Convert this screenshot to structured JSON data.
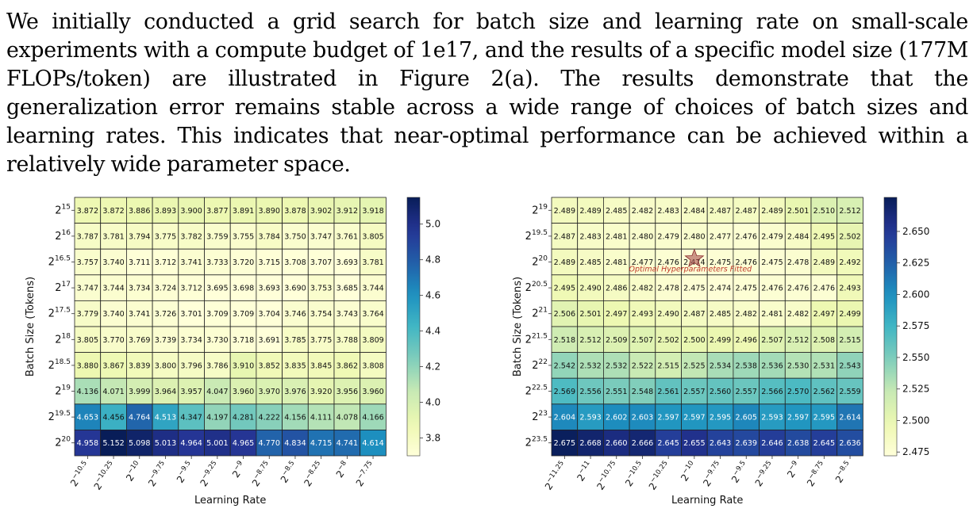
{
  "paragraph": "We initially conducted a grid search for batch size and learning rate on small-scale experiments with a compute budget of 1e17, and the results of a specific model size (177M FLOPs/token) are illustrated in Figure 2(a). The results demonstrate that the generalization error remains stable across a wide range of choices of batch sizes and learning rates. This indicates that near-optimal performance can be achieved within a relatively wide parameter space.",
  "chart_data": [
    {
      "type": "heatmap",
      "xlabel": "Learning Rate",
      "ylabel": "Batch Size (Tokens)",
      "x_ticks": [
        "−10.5",
        "−10.25",
        "−10",
        "−9.75",
        "−9.5",
        "−9.25",
        "−9",
        "−8.75",
        "−8.5",
        "−8.25",
        "−8",
        "−7.75"
      ],
      "y_ticks": [
        "15",
        "16",
        "16.5",
        "17",
        "17.5",
        "18",
        "18.5",
        "19",
        "19.5",
        "20"
      ],
      "tick_base": "2",
      "colorbar": {
        "vmin": 3.7,
        "vmax": 5.15,
        "ticks": [
          "3.8",
          "4.0",
          "4.2",
          "4.4",
          "4.6",
          "4.8",
          "5.0"
        ]
      },
      "values": [
        [
          "3.872",
          "3.872",
          "3.886",
          "3.893",
          "3.900",
          "3.877",
          "3.891",
          "3.890",
          "3.878",
          "3.902",
          "3.912",
          "3.918"
        ],
        [
          "3.787",
          "3.781",
          "3.794",
          "3.775",
          "3.782",
          "3.759",
          "3.755",
          "3.784",
          "3.750",
          "3.747",
          "3.761",
          "3.805"
        ],
        [
          "3.757",
          "3.740",
          "3.711",
          "3.712",
          "3.741",
          "3.733",
          "3.720",
          "3.715",
          "3.708",
          "3.707",
          "3.693",
          "3.781"
        ],
        [
          "3.747",
          "3.744",
          "3.734",
          "3.724",
          "3.712",
          "3.695",
          "3.698",
          "3.693",
          "3.690",
          "3.753",
          "3.685",
          "3.744"
        ],
        [
          "3.779",
          "3.740",
          "3.741",
          "3.726",
          "3.701",
          "3.709",
          "3.709",
          "3.704",
          "3.746",
          "3.754",
          "3.743",
          "3.764"
        ],
        [
          "3.805",
          "3.770",
          "3.769",
          "3.739",
          "3.734",
          "3.730",
          "3.718",
          "3.691",
          "3.785",
          "3.775",
          "3.788",
          "3.809"
        ],
        [
          "3.880",
          "3.867",
          "3.839",
          "3.800",
          "3.796",
          "3.786",
          "3.910",
          "3.852",
          "3.835",
          "3.845",
          "3.862",
          "3.808"
        ],
        [
          "4.136",
          "4.071",
          "3.999",
          "3.964",
          "3.957",
          "4.047",
          "3.960",
          "3.970",
          "3.976",
          "3.920",
          "3.956",
          "3.960"
        ],
        [
          "4.653",
          "4.456",
          "4.764",
          "4.513",
          "4.347",
          "4.197",
          "4.281",
          "4.222",
          "4.156",
          "4.111",
          "4.078",
          "4.166"
        ],
        [
          "4.958",
          "5.152",
          "5.098",
          "5.013",
          "4.964",
          "5.001",
          "4.965",
          "4.770",
          "4.834",
          "4.715",
          "4.741",
          "4.614"
        ]
      ]
    },
    {
      "type": "heatmap",
      "xlabel": "Learning Rate",
      "ylabel": "Batch Size (Tokens)",
      "x_ticks": [
        "−11.25",
        "−11",
        "−10.75",
        "−10.5",
        "−10.25",
        "−10",
        "−9.75",
        "−9.5",
        "−9.25",
        "−9",
        "−8.75",
        "−8.5"
      ],
      "y_ticks": [
        "19",
        "19.5",
        "20",
        "20.5",
        "21",
        "21.5",
        "22",
        "22.5",
        "23",
        "23.5"
      ],
      "tick_base": "2",
      "colorbar": {
        "vmin": 2.472,
        "vmax": 2.677,
        "ticks": [
          "2.475",
          "2.500",
          "2.525",
          "2.550",
          "2.575",
          "2.600",
          "2.625",
          "2.650"
        ]
      },
      "annotation": {
        "label": "Optimal Hyperparameters Fitted",
        "x_index": 5.5,
        "y_index": 2.5
      },
      "values": [
        [
          "2.489",
          "2.489",
          "2.485",
          "2.482",
          "2.483",
          "2.484",
          "2.487",
          "2.487",
          "2.489",
          "2.501",
          "2.510",
          "2.512"
        ],
        [
          "2.487",
          "2.483",
          "2.481",
          "2.480",
          "2.479",
          "2.480",
          "2.477",
          "2.476",
          "2.479",
          "2.484",
          "2.495",
          "2.502"
        ],
        [
          "2.489",
          "2.485",
          "2.481",
          "2.477",
          "2.476",
          "2.474",
          "2.475",
          "2.476",
          "2.475",
          "2.478",
          "2.489",
          "2.492"
        ],
        [
          "2.495",
          "2.490",
          "2.486",
          "2.482",
          "2.478",
          "2.475",
          "2.474",
          "2.475",
          "2.476",
          "2.476",
          "2.476",
          "2.493"
        ],
        [
          "2.506",
          "2.501",
          "2.497",
          "2.493",
          "2.490",
          "2.487",
          "2.485",
          "2.482",
          "2.481",
          "2.482",
          "2.497",
          "2.499"
        ],
        [
          "2.518",
          "2.512",
          "2.509",
          "2.507",
          "2.502",
          "2.500",
          "2.499",
          "2.496",
          "2.507",
          "2.512",
          "2.508",
          "2.515"
        ],
        [
          "2.542",
          "2.532",
          "2.532",
          "2.522",
          "2.515",
          "2.525",
          "2.534",
          "2.538",
          "2.536",
          "2.530",
          "2.531",
          "2.543"
        ],
        [
          "2.569",
          "2.556",
          "2.551",
          "2.548",
          "2.561",
          "2.557",
          "2.560",
          "2.557",
          "2.566",
          "2.570",
          "2.562",
          "2.559"
        ],
        [
          "2.604",
          "2.593",
          "2.602",
          "2.603",
          "2.597",
          "2.597",
          "2.595",
          "2.605",
          "2.593",
          "2.597",
          "2.595",
          "2.614"
        ],
        [
          "2.675",
          "2.668",
          "2.660",
          "2.666",
          "2.645",
          "2.655",
          "2.643",
          "2.639",
          "2.646",
          "2.638",
          "2.645",
          "2.636"
        ]
      ]
    }
  ]
}
